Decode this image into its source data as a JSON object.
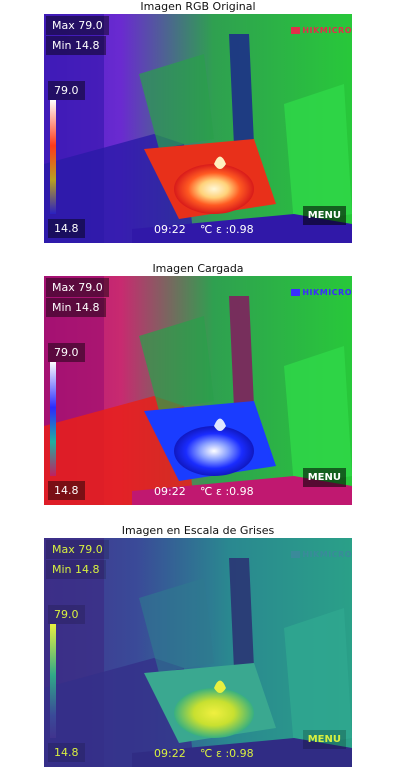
{
  "panels": [
    {
      "title": "Imagen RGB Original",
      "max_label": "Max 79.0",
      "min_label": "Min 14.8",
      "scale_top": "79.0",
      "scale_bottom": "14.8",
      "time": "09:22",
      "unit": "℃",
      "emissivity": "ε :0.98",
      "menu_label": "MENU",
      "brand": "HIKMICRO",
      "colors": {
        "bg": "#3b14b8",
        "mid": "#18c23a",
        "hot": "#ff2a1a",
        "core": "#fff4c8",
        "text": "#ffffff",
        "brand": "#e0304a"
      }
    },
    {
      "title": "Imagen Cargada",
      "max_label": "Max 79.0",
      "min_label": "Min 14.8",
      "scale_top": "79.0",
      "scale_bottom": "14.8",
      "time": "09:22",
      "unit": "℃",
      "emissivity": "ε :0.98",
      "menu_label": "MENU",
      "brand": "HIKMICRO",
      "colors": {
        "bg": "#a8126e",
        "mid": "#18c23a",
        "hot": "#ff2a1a",
        "core": "#1a2cff",
        "text": "#ffffff",
        "brand": "#3a2cff"
      }
    },
    {
      "title": "Imagen en Escala de Grises",
      "max_label": "Max 79.0",
      "min_label": "Min 14.8",
      "scale_top": "79.0",
      "scale_bottom": "14.8",
      "time": "09:22",
      "unit": "℃",
      "emissivity": "ε :0.98",
      "menu_label": "MENU",
      "brand": "HIKMICRO",
      "colors": {
        "bg": "#3b3a8c",
        "mid": "#2a9a8a",
        "hot": "#39b090",
        "core": "#dfe83a",
        "text": "#d8f040",
        "brand": "#3a8a9a"
      }
    }
  ]
}
